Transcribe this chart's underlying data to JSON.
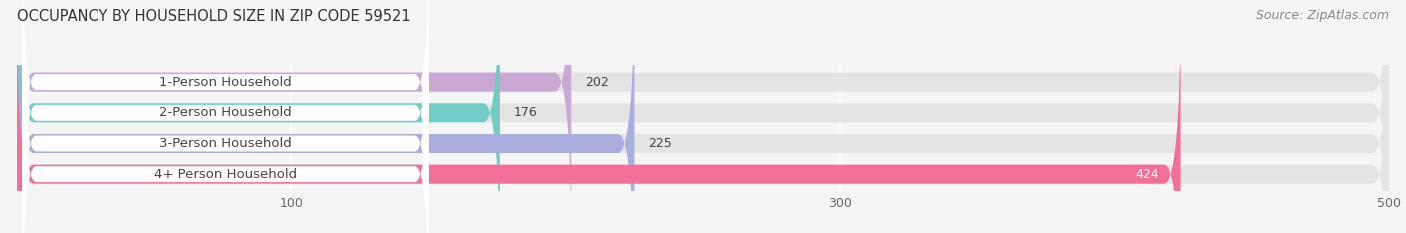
{
  "title": "OCCUPANCY BY HOUSEHOLD SIZE IN ZIP CODE 59521",
  "source": "Source: ZipAtlas.com",
  "categories": [
    "1-Person Household",
    "2-Person Household",
    "3-Person Household",
    "4+ Person Household"
  ],
  "values": [
    202,
    176,
    225,
    424
  ],
  "bar_colors": [
    "#c9a8d4",
    "#70ccc4",
    "#a8aee0",
    "#f07098"
  ],
  "bar_bg_color": "#e4e4e4",
  "xlim": [
    0,
    500
  ],
  "xticks": [
    100,
    300,
    500
  ],
  "background_color": "#f5f5f5",
  "bar_height": 0.62,
  "label_fontsize": 9.5,
  "title_fontsize": 10.5,
  "source_fontsize": 9,
  "value_fontsize": 9,
  "tick_fontsize": 9,
  "category_bg_color": "#ffffff",
  "category_text_color": "#444444",
  "value_label_color_last": "#ffffff",
  "grid_color": "#ffffff"
}
